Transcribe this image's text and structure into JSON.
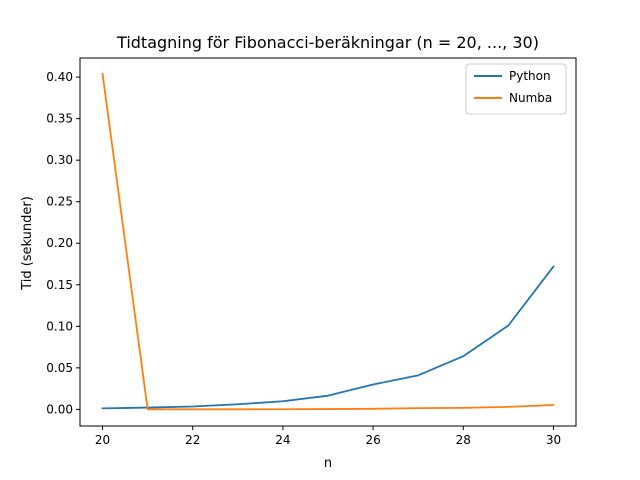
{
  "chart_data": {
    "type": "line",
    "title": "Tidtagning för Fibonacci-beräkningar (n = 20, ..., 30)",
    "xlabel": "n",
    "ylabel": "Tid (sekunder)",
    "xlim": [
      19.5,
      30.5
    ],
    "ylim": [
      -0.02,
      0.423
    ],
    "xticks": [
      20,
      22,
      24,
      26,
      28,
      30
    ],
    "yticks": [
      0.0,
      0.05,
      0.1,
      0.15,
      0.2,
      0.25,
      0.3,
      0.35,
      0.4
    ],
    "ytick_labels": [
      "0.00",
      "0.05",
      "0.10",
      "0.15",
      "0.20",
      "0.25",
      "0.30",
      "0.35",
      "0.40"
    ],
    "x": [
      20,
      21,
      22,
      23,
      24,
      25,
      26,
      27,
      28,
      29,
      30
    ],
    "series": [
      {
        "name": "Python",
        "color": "#1f77b4",
        "values": [
          0.0012,
          0.0022,
          0.0035,
          0.0062,
          0.0098,
          0.0165,
          0.03,
          0.041,
          0.064,
          0.101,
          0.172
        ]
      },
      {
        "name": "Numba",
        "color": "#ff7f0e",
        "values": [
          0.404,
          0.0001,
          0.0001,
          0.0001,
          0.0002,
          0.0004,
          0.0007,
          0.0015,
          0.0018,
          0.003,
          0.0052
        ]
      }
    ],
    "legend_position": "top-right",
    "grid": false
  }
}
